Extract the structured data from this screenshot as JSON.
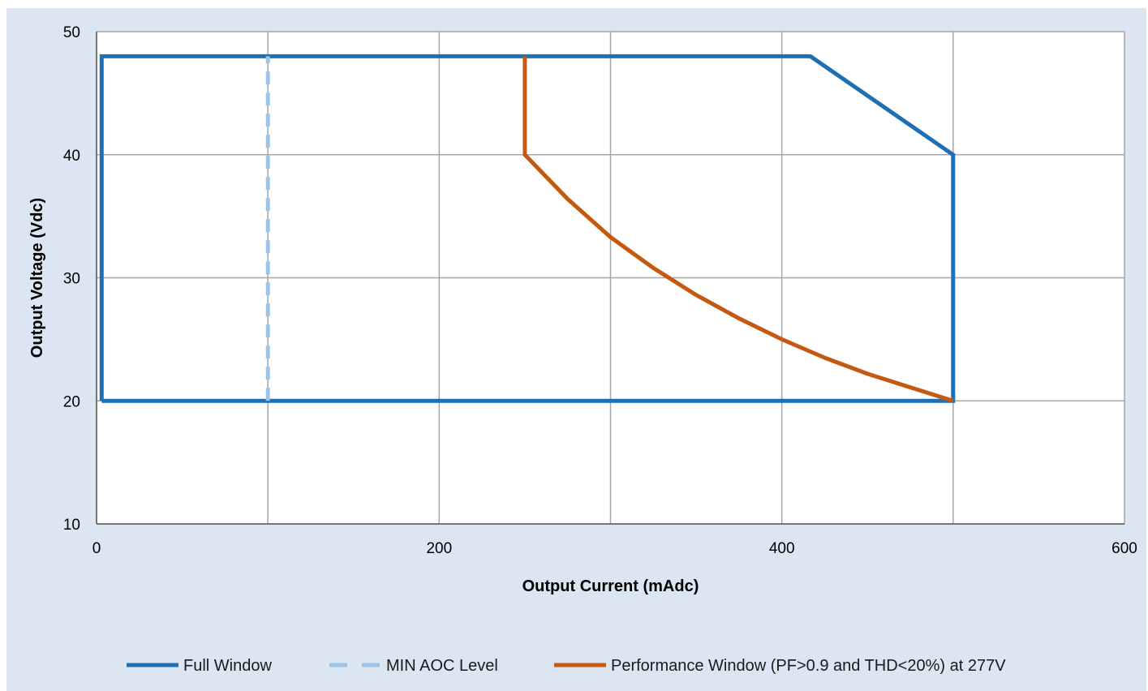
{
  "chart_data": {
    "type": "line",
    "xlabel": "Output Current (mAdc)",
    "ylabel": "Output Voltage (Vdc)",
    "xlim": [
      0,
      600
    ],
    "ylim": [
      10,
      50
    ],
    "xticks": [
      0,
      200,
      400,
      600
    ],
    "yticks": [
      10,
      20,
      30,
      40,
      50
    ],
    "x_gridlines": [
      0,
      100,
      200,
      300,
      400,
      500,
      600
    ],
    "y_gridlines": [
      10,
      20,
      30,
      40,
      50
    ],
    "grid": true,
    "legend_position": "bottom",
    "series": [
      {
        "name": "Full Window",
        "color": "#1f6fb5",
        "style": "solid",
        "points": [
          [
            3,
            20
          ],
          [
            3,
            48
          ],
          [
            416.7,
            48
          ],
          [
            500,
            40
          ],
          [
            500,
            20
          ],
          [
            3,
            20
          ]
        ]
      },
      {
        "name": "MIN AOC Level",
        "color": "#9dc3e6",
        "style": "dashed",
        "points": [
          [
            100,
            20
          ],
          [
            100,
            48
          ]
        ]
      },
      {
        "name": "Performance Window (PF>0.9 and THD<20%) at 277V",
        "color": "#c65911",
        "style": "solid",
        "points": [
          [
            250,
            48
          ],
          [
            250,
            40
          ],
          [
            275,
            36.4
          ],
          [
            300,
            33.3
          ],
          [
            325,
            30.8
          ],
          [
            350,
            28.6
          ],
          [
            375,
            26.7
          ],
          [
            400,
            25
          ],
          [
            425,
            23.5
          ],
          [
            450,
            22.2
          ],
          [
            475,
            21.1
          ],
          [
            500,
            20
          ]
        ]
      }
    ]
  }
}
